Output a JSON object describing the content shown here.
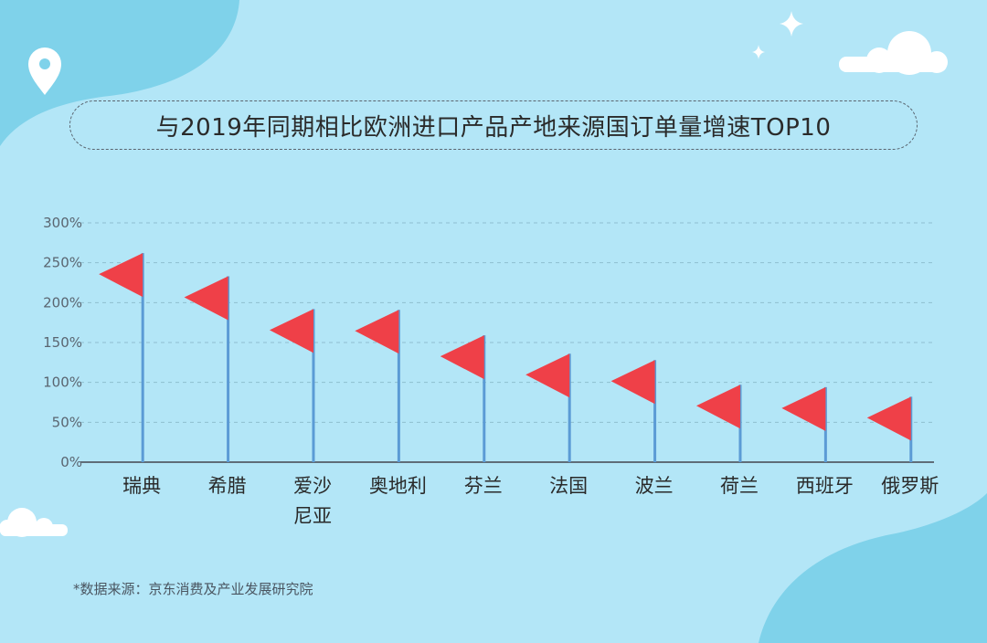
{
  "chart_data": {
    "type": "bar",
    "title": "与2019年同期相比欧洲进口产品产地来源国订单量增速TOP10",
    "categories": [
      "瑞典",
      "希腊",
      "爱沙尼亚",
      "奥地利",
      "芬兰",
      "法国",
      "波兰",
      "荷兰",
      "西班牙",
      "俄罗斯"
    ],
    "category_lines": [
      [
        "瑞典"
      ],
      [
        "希腊"
      ],
      [
        "爱沙",
        "尼亚"
      ],
      [
        "奥地利"
      ],
      [
        "芬兰"
      ],
      [
        "法国"
      ],
      [
        "波兰"
      ],
      [
        "荷兰"
      ],
      [
        "西班牙"
      ],
      [
        "俄罗斯"
      ]
    ],
    "values": [
      262,
      233,
      192,
      191,
      159,
      136,
      128,
      97,
      94,
      82
    ],
    "unit": "%",
    "ylim": [
      0,
      300
    ],
    "yticks": [
      0,
      50,
      100,
      150,
      200,
      250,
      300
    ],
    "ytick_labels": [
      "0%",
      "50%",
      "100%",
      "150%",
      "200%",
      "250%",
      "300%"
    ],
    "grid": true,
    "marker": "flag"
  },
  "colors": {
    "background": "#b3e6f7",
    "blob": "#7fd2ea",
    "pole": "#5b9bd5",
    "flag": "#ef4048",
    "grid": "#8fbfd0",
    "axis": "#5f6d78",
    "text": "#2a2a2a"
  },
  "icons": [
    "location-pin-icon",
    "sparkle-icon",
    "cloud-icon"
  ],
  "source_note": "*数据来源：京东消费及产业发展研究院"
}
